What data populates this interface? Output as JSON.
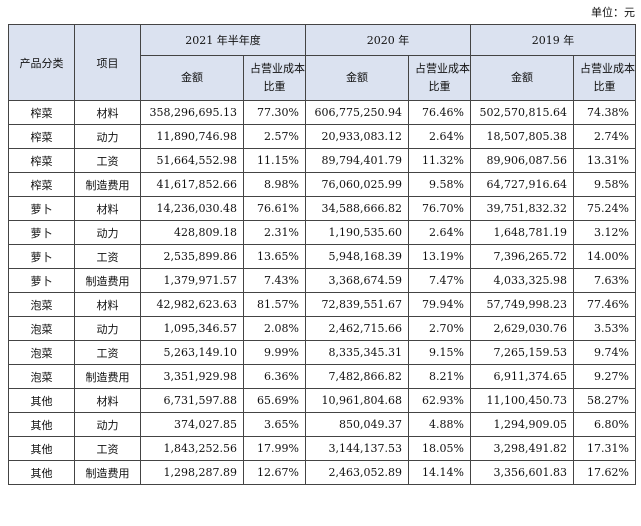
{
  "unit_label": "单位：元",
  "header": {
    "category": "产品分类",
    "item": "项目",
    "periods": [
      "2021 年半年度",
      "2020 年",
      "2019 年"
    ],
    "amount": "金额",
    "ratio_line1": "占营业成本",
    "ratio_line2": "比重"
  },
  "rows": [
    {
      "category": "榨菜",
      "item": "材料",
      "v": [
        "358,296,695.13",
        "77.30%",
        "606,775,250.94",
        "76.46%",
        "502,570,815.64",
        "74.38%"
      ]
    },
    {
      "category": "榨菜",
      "item": "动力",
      "v": [
        "11,890,746.98",
        "2.57%",
        "20,933,083.12",
        "2.64%",
        "18,507,805.38",
        "2.74%"
      ]
    },
    {
      "category": "榨菜",
      "item": "工资",
      "v": [
        "51,664,552.98",
        "11.15%",
        "89,794,401.79",
        "11.32%",
        "89,906,087.56",
        "13.31%"
      ]
    },
    {
      "category": "榨菜",
      "item": "制造费用",
      "v": [
        "41,617,852.66",
        "8.98%",
        "76,060,025.99",
        "9.58%",
        "64,727,916.64",
        "9.58%"
      ]
    },
    {
      "category": "萝卜",
      "item": "材料",
      "v": [
        "14,236,030.48",
        "76.61%",
        "34,588,666.82",
        "76.70%",
        "39,751,832.32",
        "75.24%"
      ]
    },
    {
      "category": "萝卜",
      "item": "动力",
      "v": [
        "428,809.18",
        "2.31%",
        "1,190,535.60",
        "2.64%",
        "1,648,781.19",
        "3.12%"
      ]
    },
    {
      "category": "萝卜",
      "item": "工资",
      "v": [
        "2,535,899.86",
        "13.65%",
        "5,948,168.39",
        "13.19%",
        "7,396,265.72",
        "14.00%"
      ]
    },
    {
      "category": "萝卜",
      "item": "制造费用",
      "v": [
        "1,379,971.57",
        "7.43%",
        "3,368,674.59",
        "7.47%",
        "4,033,325.98",
        "7.63%"
      ]
    },
    {
      "category": "泡菜",
      "item": "材料",
      "v": [
        "42,982,623.63",
        "81.57%",
        "72,839,551.67",
        "79.94%",
        "57,749,998.23",
        "77.46%"
      ]
    },
    {
      "category": "泡菜",
      "item": "动力",
      "v": [
        "1,095,346.57",
        "2.08%",
        "2,462,715.66",
        "2.70%",
        "2,629,030.76",
        "3.53%"
      ]
    },
    {
      "category": "泡菜",
      "item": "工资",
      "v": [
        "5,263,149.10",
        "9.99%",
        "8,335,345.31",
        "9.15%",
        "7,265,159.53",
        "9.74%"
      ]
    },
    {
      "category": "泡菜",
      "item": "制造费用",
      "v": [
        "3,351,929.98",
        "6.36%",
        "7,482,866.82",
        "8.21%",
        "6,911,374.65",
        "9.27%"
      ]
    },
    {
      "category": "其他",
      "item": "材料",
      "v": [
        "6,731,597.88",
        "65.69%",
        "10,961,804.68",
        "62.93%",
        "11,100,450.73",
        "58.27%"
      ]
    },
    {
      "category": "其他",
      "item": "动力",
      "v": [
        "374,027.85",
        "3.65%",
        "850,049.37",
        "4.88%",
        "1,294,909.05",
        "6.80%"
      ]
    },
    {
      "category": "其他",
      "item": "工资",
      "v": [
        "1,843,252.56",
        "17.99%",
        "3,144,137.53",
        "18.05%",
        "3,298,491.82",
        "17.31%"
      ]
    },
    {
      "category": "其他",
      "item": "制造费用",
      "v": [
        "1,298,287.89",
        "12.67%",
        "2,463,052.89",
        "14.14%",
        "3,356,601.83",
        "17.62%"
      ]
    }
  ],
  "colors": {
    "header_bg": "#dbe2f0",
    "border": "#444444"
  }
}
